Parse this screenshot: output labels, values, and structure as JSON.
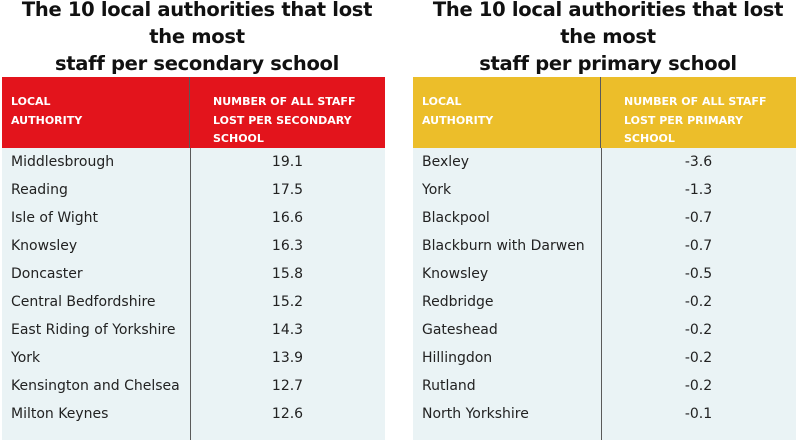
{
  "chart_data": [
    {
      "type": "table",
      "title_lines": [
        "The 10 local authorities that lost the most",
        "staff per secondary school"
      ],
      "header_color": "#e3141c",
      "columns": [
        {
          "label_lines": [
            "LOCAL",
            "AUTHORITY"
          ]
        },
        {
          "label_lines": [
            "NUMBER OF ALL STAFF",
            "LOST PER SECONDARY",
            "SCHOOL"
          ]
        }
      ],
      "rows": [
        {
          "authority": "Middlesbrough",
          "value": "19.1"
        },
        {
          "authority": "Reading",
          "value": "17.5"
        },
        {
          "authority": "Isle of Wight",
          "value": "16.6"
        },
        {
          "authority": "Knowsley",
          "value": "16.3"
        },
        {
          "authority": "Doncaster",
          "value": "15.8"
        },
        {
          "authority": "Central Bedfordshire",
          "value": "15.2"
        },
        {
          "authority": "East Riding of Yorkshire",
          "value": "14.3"
        },
        {
          "authority": "York",
          "value": "13.9"
        },
        {
          "authority": "Kensington and Chelsea",
          "value": "12.7"
        },
        {
          "authority": "Milton Keynes",
          "value": "12.6"
        }
      ]
    },
    {
      "type": "table",
      "title_lines": [
        "The 10 local authorities that lost the most",
        "staff per primary school"
      ],
      "header_color": "#ecbe2a",
      "columns": [
        {
          "label_lines": [
            "LOCAL",
            "AUTHORITY"
          ]
        },
        {
          "label_lines": [
            "NUMBER OF ALL STAFF",
            "LOST PER PRIMARY",
            "SCHOOL"
          ]
        }
      ],
      "rows": [
        {
          "authority": "Bexley",
          "value": "-3.6"
        },
        {
          "authority": "York",
          "value": "-1.3"
        },
        {
          "authority": "Blackpool",
          "value": "-0.7"
        },
        {
          "authority": "Blackburn with Darwen",
          "value": "-0.7"
        },
        {
          "authority": "Knowsley",
          "value": "-0.5"
        },
        {
          "authority": "Redbridge",
          "value": "-0.2"
        },
        {
          "authority": "Gateshead",
          "value": "-0.2"
        },
        {
          "authority": "Hillingdon",
          "value": "-0.2"
        },
        {
          "authority": "Rutland",
          "value": "-0.2"
        },
        {
          "authority": "North Yorkshire",
          "value": "-0.1"
        }
      ]
    }
  ]
}
